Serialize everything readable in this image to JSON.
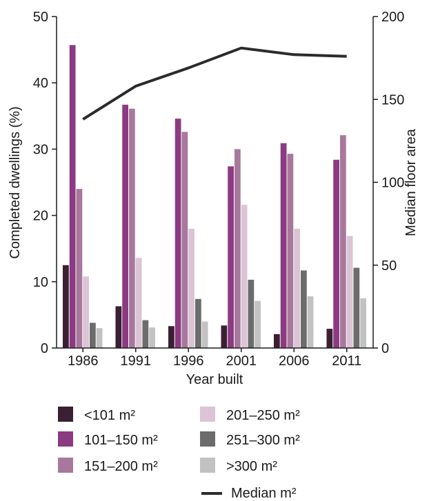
{
  "chart_data": {
    "type": "bar",
    "categories": [
      "1986",
      "1991",
      "1996",
      "2001",
      "2006",
      "2011"
    ],
    "xlabel": "Year built",
    "ylabel": "Completed dwellings (%)",
    "ylabel_right": "Median floor area",
    "ylim": [
      0,
      50
    ],
    "ylim_right": [
      0,
      200
    ],
    "yticks": [
      "0",
      "10",
      "20",
      "30",
      "40",
      "50"
    ],
    "yticks_right": [
      "0",
      "50",
      "100",
      "150",
      "200"
    ],
    "grid": false,
    "legend_position": "bottom",
    "series": [
      {
        "name": "<101 m²",
        "color": "#3b1f33",
        "values": [
          12.5,
          6.3,
          3.3,
          3.4,
          2.1,
          2.9
        ]
      },
      {
        "name": "101–150 m²",
        "color": "#8c3a82",
        "values": [
          45.7,
          36.7,
          34.6,
          27.4,
          30.9,
          28.4
        ]
      },
      {
        "name": "151–200 m²",
        "color": "#a7789c",
        "values": [
          24.0,
          36.1,
          32.6,
          30.0,
          29.3,
          32.1
        ]
      },
      {
        "name": "201–250 m²",
        "color": "#dbc4d5",
        "values": [
          10.8,
          13.6,
          18.0,
          21.6,
          18.0,
          16.9
        ]
      },
      {
        "name": "251–300 m²",
        "color": "#6c6c6c",
        "values": [
          3.8,
          4.2,
          7.4,
          10.3,
          11.7,
          12.1
        ]
      },
      {
        "name": ">300 m²",
        "color": "#c2c2c2",
        "values": [
          3.0,
          3.1,
          4.0,
          7.1,
          7.8,
          7.5
        ]
      }
    ],
    "line_series": {
      "name": "Median m²",
      "axis": "right",
      "color": "#2b2b2b",
      "values": [
        138,
        158,
        169,
        181,
        177,
        176
      ]
    }
  }
}
